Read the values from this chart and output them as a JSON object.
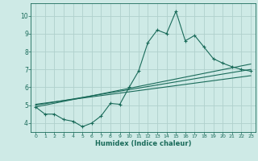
{
  "xlabel": "Humidex (Indice chaleur)",
  "background_color": "#ceeae6",
  "grid_color": "#b0d0cc",
  "line_color": "#1a6b5a",
  "xlim": [
    -0.5,
    23.5
  ],
  "ylim": [
    3.5,
    10.7
  ],
  "xticks": [
    0,
    1,
    2,
    3,
    4,
    5,
    6,
    7,
    8,
    9,
    10,
    11,
    12,
    13,
    14,
    15,
    16,
    17,
    18,
    19,
    20,
    21,
    22,
    23
  ],
  "yticks": [
    4,
    5,
    6,
    7,
    8,
    9,
    10
  ],
  "main_x": [
    0,
    1,
    2,
    3,
    4,
    5,
    6,
    7,
    8,
    9,
    10,
    11,
    12,
    13,
    14,
    15,
    16,
    17,
    18,
    19,
    20,
    21,
    22,
    23
  ],
  "main_y": [
    4.9,
    4.5,
    4.5,
    4.2,
    4.1,
    3.8,
    4.0,
    4.4,
    5.1,
    5.05,
    6.0,
    6.9,
    8.5,
    9.2,
    9.0,
    10.25,
    8.6,
    8.9,
    8.25,
    7.6,
    7.35,
    7.15,
    7.0,
    6.9
  ],
  "line1_x": [
    0,
    23
  ],
  "line1_y": [
    4.9,
    7.3
  ],
  "line2_x": [
    0,
    23
  ],
  "line2_y": [
    5.0,
    7.0
  ],
  "line3_x": [
    0,
    23
  ],
  "line3_y": [
    5.05,
    6.65
  ]
}
